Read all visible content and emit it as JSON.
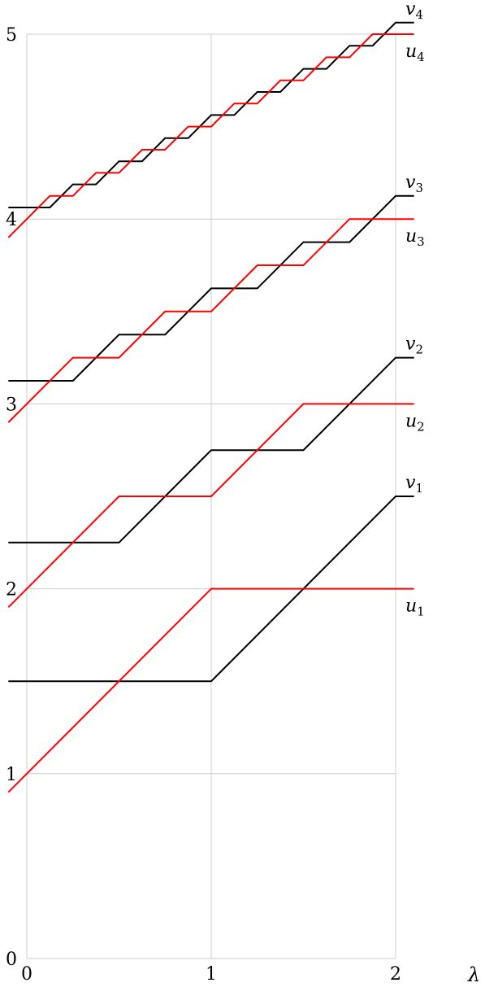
{
  "chart_data": {
    "type": "line",
    "xlabel": "λ",
    "x_ticks": [
      0,
      1,
      2
    ],
    "y_ticks": [
      0,
      1,
      2,
      3,
      4,
      5
    ],
    "xlim": [
      0,
      2.1
    ],
    "ylim": [
      0,
      5
    ],
    "grid": true,
    "colors": {
      "v": "#000000",
      "u": "#ff0000"
    },
    "series": [
      {
        "name": "v_1",
        "base": "v",
        "sub": "1",
        "color": "#000000",
        "points": [
          [
            -0.1,
            1.5
          ],
          [
            1,
            1.5
          ],
          [
            2,
            2.5
          ],
          [
            2.1,
            2.5
          ]
        ]
      },
      {
        "name": "u_1",
        "base": "u",
        "sub": "1",
        "color": "#ff0000",
        "points": [
          [
            -0.1,
            0.9
          ],
          [
            1,
            2
          ],
          [
            2.1,
            2
          ]
        ]
      },
      {
        "name": "v_2",
        "base": "v",
        "sub": "2",
        "color": "#000000",
        "points": [
          [
            -0.1,
            2.25
          ],
          [
            0.5,
            2.25
          ],
          [
            1,
            2.75
          ],
          [
            1.5,
            2.75
          ],
          [
            2,
            3.25
          ],
          [
            2.1,
            3.25
          ]
        ]
      },
      {
        "name": "u_2",
        "base": "u",
        "sub": "2",
        "color": "#ff0000",
        "points": [
          [
            -0.1,
            1.9
          ],
          [
            0.5,
            2.5
          ],
          [
            1,
            2.5
          ],
          [
            1.5,
            3
          ],
          [
            2.1,
            3
          ]
        ]
      },
      {
        "name": "v_3",
        "base": "v",
        "sub": "3",
        "color": "#000000",
        "points": [
          [
            -0.1,
            3.125
          ],
          [
            0.25,
            3.125
          ],
          [
            0.5,
            3.375
          ],
          [
            0.75,
            3.375
          ],
          [
            1,
            3.625
          ],
          [
            1.25,
            3.625
          ],
          [
            1.5,
            3.875
          ],
          [
            1.75,
            3.875
          ],
          [
            2,
            4.125
          ],
          [
            2.1,
            4.125
          ]
        ]
      },
      {
        "name": "u_3",
        "base": "u",
        "sub": "3",
        "color": "#ff0000",
        "points": [
          [
            -0.1,
            2.9
          ],
          [
            0.25,
            3.25
          ],
          [
            0.5,
            3.25
          ],
          [
            0.75,
            3.5
          ],
          [
            1,
            3.5
          ],
          [
            1.25,
            3.75
          ],
          [
            1.5,
            3.75
          ],
          [
            1.75,
            4
          ],
          [
            2.1,
            4
          ]
        ]
      },
      {
        "name": "v_4",
        "base": "v",
        "sub": "4",
        "color": "#000000",
        "points": [
          [
            -0.1,
            4.0625
          ],
          [
            0.125,
            4.0625
          ],
          [
            0.25,
            4.1875
          ],
          [
            0.375,
            4.1875
          ],
          [
            0.5,
            4.3125
          ],
          [
            0.625,
            4.3125
          ],
          [
            0.75,
            4.4375
          ],
          [
            0.875,
            4.4375
          ],
          [
            1,
            4.5625
          ],
          [
            1.125,
            4.5625
          ],
          [
            1.25,
            4.6875
          ],
          [
            1.375,
            4.6875
          ],
          [
            1.5,
            4.8125
          ],
          [
            1.625,
            4.8125
          ],
          [
            1.75,
            4.9375
          ],
          [
            1.875,
            4.9375
          ],
          [
            2,
            5.0625
          ],
          [
            2.1,
            5.0625
          ]
        ]
      },
      {
        "name": "u_4",
        "base": "u",
        "sub": "4",
        "color": "#ff0000",
        "points": [
          [
            -0.1,
            3.9
          ],
          [
            0.125,
            4.125
          ],
          [
            0.25,
            4.125
          ],
          [
            0.375,
            4.25
          ],
          [
            0.5,
            4.25
          ],
          [
            0.625,
            4.375
          ],
          [
            0.75,
            4.375
          ],
          [
            0.875,
            4.5
          ],
          [
            1,
            4.5
          ],
          [
            1.125,
            4.625
          ],
          [
            1.25,
            4.625
          ],
          [
            1.375,
            4.75
          ],
          [
            1.5,
            4.75
          ],
          [
            1.625,
            4.875
          ],
          [
            1.75,
            4.875
          ],
          [
            1.875,
            5
          ],
          [
            2.1,
            5
          ]
        ]
      }
    ]
  }
}
